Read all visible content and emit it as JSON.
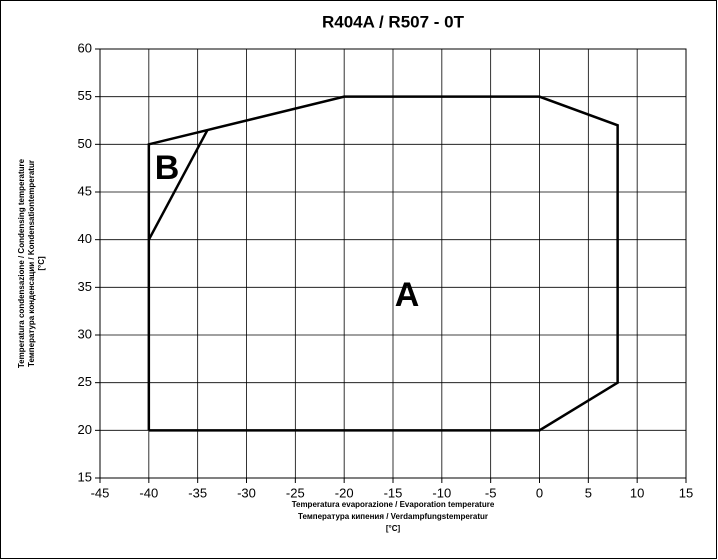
{
  "chart_data": {
    "type": "line",
    "title": "R404A / R507 - 0T",
    "x_label": [
      "Temperatura evaporazione / Evaporation temperature",
      "Температура кипения / Verdampfungstemperatur",
      "[°C]"
    ],
    "y_label": [
      "Temperatura condensazione / Condensing temperature",
      "Температура конденсации / Kondensationtemperatur",
      "[°C]"
    ],
    "xlim": [
      -45,
      15
    ],
    "ylim": [
      15,
      60
    ],
    "xticks": [
      -45,
      -40,
      -35,
      -30,
      -25,
      -20,
      -15,
      -10,
      -5,
      0,
      5,
      10,
      15
    ],
    "yticks": [
      15,
      20,
      25,
      30,
      35,
      40,
      45,
      50,
      55,
      60
    ],
    "grid": true,
    "series": [
      {
        "name": "A",
        "color": "#000000",
        "x": [
          -40,
          -40,
          -34,
          -20,
          0,
          8,
          8,
          0,
          -40
        ],
        "values": [
          20,
          50,
          51.5,
          55,
          55,
          52,
          25,
          20,
          20
        ]
      },
      {
        "name": "B",
        "color": "#000000",
        "x": [
          -40,
          -34
        ],
        "values": [
          40,
          51.5
        ]
      }
    ]
  }
}
